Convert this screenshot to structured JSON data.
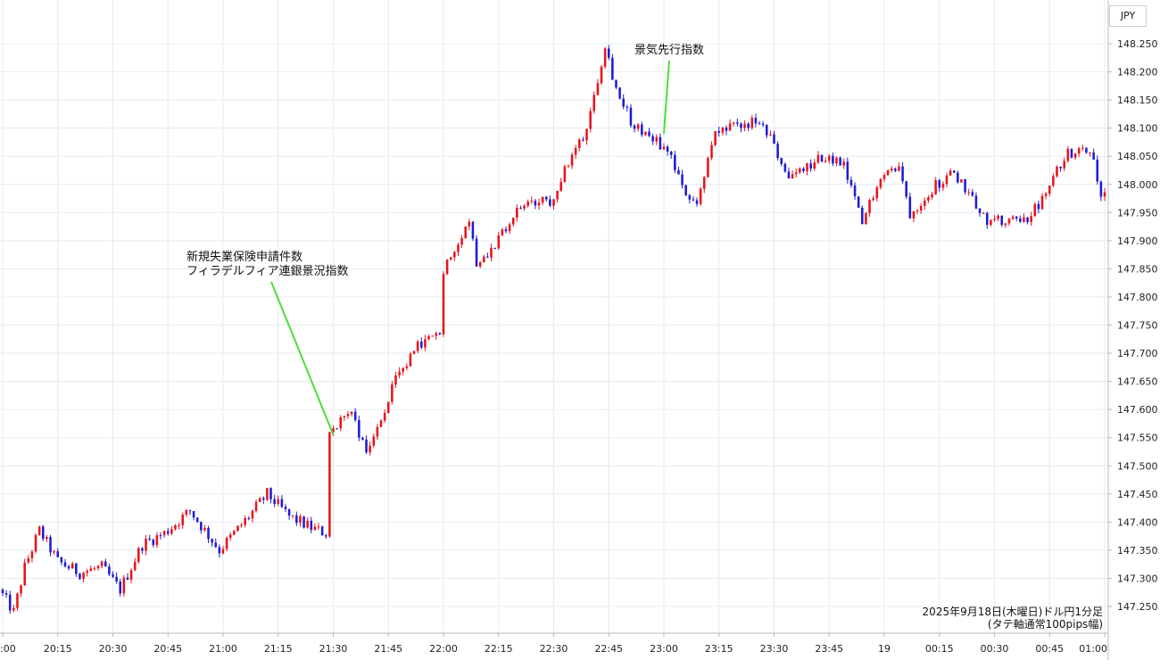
{
  "currency_label": "JPY",
  "caption": {
    "line1": "2025年9月18日(木曜日)ドル円1分足",
    "line2": "(タテ軸通常100pips幅)"
  },
  "chart_data": {
    "type": "candlestick",
    "interval": "1 minute",
    "x_axis": {
      "tick_labels": [
        ":00",
        "20:15",
        "20:30",
        "20:45",
        "21:00",
        "21:15",
        "21:30",
        "21:45",
        "22:00",
        "22:15",
        "22:30",
        "22:45",
        "23:00",
        "23:15",
        "23:30",
        "23:45",
        "19",
        "00:15",
        "00:30",
        "00:45",
        "01:00"
      ]
    },
    "y_axis": {
      "position": "right",
      "range": [
        147.22,
        148.28
      ],
      "tick_labels": [
        "148.250",
        "148.200",
        "148.150",
        "148.100",
        "148.050",
        "148.000",
        "147.950",
        "147.900",
        "147.850",
        "147.800",
        "147.750",
        "147.700",
        "147.650",
        "147.600",
        "147.550",
        "147.500",
        "147.450",
        "147.400",
        "147.350",
        "147.300",
        "147.250"
      ]
    },
    "colors": {
      "up": "#e8141c",
      "down": "#1d1dd2",
      "grid": "#e3ecf2",
      "annotation_line": "#4ddf3a"
    },
    "grid": true,
    "price_path": [
      [
        "20:00",
        147.28
      ],
      [
        "20:04",
        147.24
      ],
      [
        "20:07",
        147.32
      ],
      [
        "20:11",
        147.385
      ],
      [
        "20:16",
        147.33
      ],
      [
        "20:22",
        147.31
      ],
      [
        "20:28",
        147.32
      ],
      [
        "20:33",
        147.28
      ],
      [
        "20:39",
        147.36
      ],
      [
        "20:45",
        147.38
      ],
      [
        "20:52",
        147.42
      ],
      [
        "21:00",
        147.35
      ],
      [
        "21:08",
        147.41
      ],
      [
        "21:13",
        147.45
      ],
      [
        "21:19",
        147.41
      ],
      [
        "21:25",
        147.39
      ],
      [
        "21:29",
        147.38
      ],
      [
        "21:30",
        147.56
      ],
      [
        "21:36",
        147.6
      ],
      [
        "21:40",
        147.52
      ],
      [
        "21:48",
        147.65
      ],
      [
        "21:55",
        147.72
      ],
      [
        "22:00",
        147.73
      ],
      [
        "22:01",
        147.85
      ],
      [
        "22:08",
        147.94
      ],
      [
        "22:10",
        147.86
      ],
      [
        "22:16",
        147.9
      ],
      [
        "22:22",
        147.96
      ],
      [
        "22:30",
        147.97
      ],
      [
        "22:40",
        148.1
      ],
      [
        "22:45",
        148.25
      ],
      [
        "22:48",
        148.17
      ],
      [
        "22:53",
        148.1
      ],
      [
        "22:57",
        148.09
      ],
      [
        "23:03",
        148.05
      ],
      [
        "23:06",
        147.99
      ],
      [
        "23:10",
        147.97
      ],
      [
        "23:15",
        148.09
      ],
      [
        "23:20",
        148.1
      ],
      [
        "23:26",
        148.11
      ],
      [
        "23:30",
        148.08
      ],
      [
        "23:35",
        148.01
      ],
      [
        "23:45",
        148.05
      ],
      [
        "23:50",
        148.03
      ],
      [
        "23:55",
        147.93
      ],
      [
        "00:00",
        148.02
      ],
      [
        "00:05",
        148.03
      ],
      [
        "00:08",
        147.95
      ],
      [
        "00:15",
        148.0
      ],
      [
        "00:20",
        148.02
      ],
      [
        "00:25",
        147.98
      ],
      [
        "00:28",
        147.94
      ],
      [
        "00:35",
        147.93
      ],
      [
        "00:40",
        147.94
      ],
      [
        "00:45",
        147.98
      ],
      [
        "00:50",
        148.05
      ],
      [
        "00:55",
        148.07
      ],
      [
        "00:58",
        148.05
      ],
      [
        "01:00",
        147.98
      ]
    ],
    "annotations": [
      {
        "lines": [
          "新規失業保険申請件数",
          "フィラデルフィア連銀景況指数"
        ],
        "time": "21:30",
        "price": 147.555
      },
      {
        "lines": [
          "景気先行指数"
        ],
        "time": "23:00",
        "price": 148.09
      }
    ]
  }
}
